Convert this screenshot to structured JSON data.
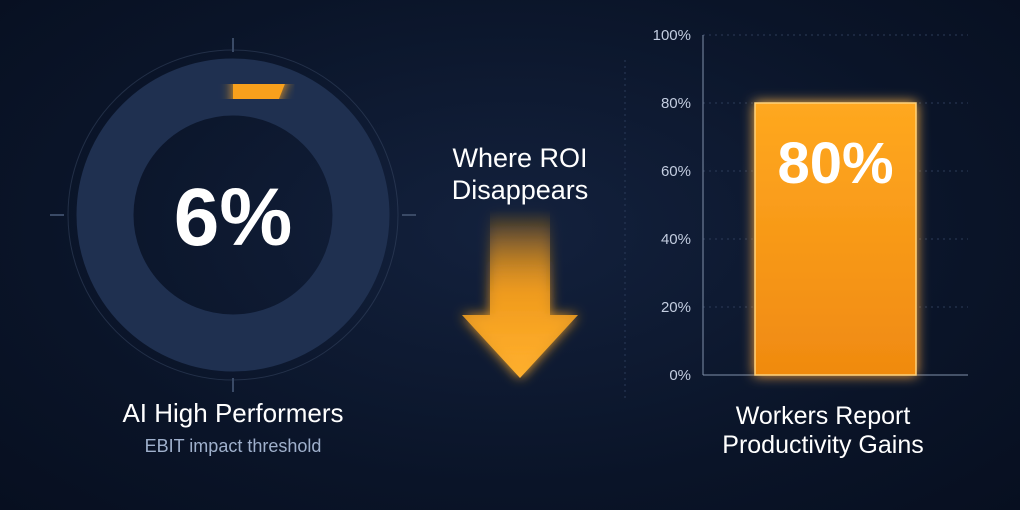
{
  "annotation": "Where ROI Disappears",
  "chart_data": [
    {
      "type": "donut",
      "title": "AI High Performers",
      "subtitle": "EBIT impact threshold",
      "values": [
        6
      ],
      "value_labels": [
        "6%"
      ],
      "color": "#f8a01c"
    },
    {
      "type": "bar",
      "title": "Workers Report Productivity Gains",
      "categories": [
        null
      ],
      "values": [
        80
      ],
      "value_labels": [
        "80%"
      ],
      "color": "#f8a01c",
      "ylim": [
        0,
        100
      ],
      "yticks": [
        {
          "value": 0,
          "label": "0%"
        },
        {
          "value": 20,
          "label": "20%"
        },
        {
          "value": 40,
          "label": "40%"
        },
        {
          "value": 60,
          "label": "60%"
        },
        {
          "value": 80,
          "label": "80%"
        },
        {
          "value": 100,
          "label": "100%"
        }
      ],
      "grid": true
    }
  ]
}
